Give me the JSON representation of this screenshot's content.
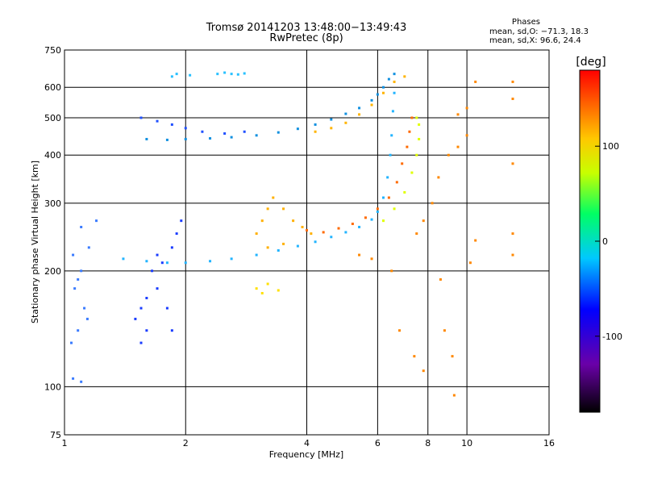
{
  "chart_data": {
    "type": "scatter",
    "title": "Tromsø 20141203 13:48:00−13:49:43",
    "subtitle": "RwPretec (8p)",
    "xlabel": "Frequency [MHz]",
    "ylabel": "Stationary phase Virtual Height [km]",
    "x_scale": "log",
    "y_scale": "log",
    "xlim": [
      1,
      16
    ],
    "ylim": [
      75,
      750
    ],
    "x_ticks": [
      1,
      2,
      4,
      6,
      8,
      10,
      16
    ],
    "y_ticks": [
      75,
      100,
      200,
      300,
      400,
      500,
      600,
      750
    ],
    "grid": true,
    "colorbar": {
      "label": "[deg]",
      "range": [
        -180,
        180
      ],
      "ticks": [
        100,
        0,
        -100
      ]
    },
    "phase_stats": {
      "title": "Phases",
      "o_line": "mean, sd,O: −71.3, 18.3",
      "x_line": "mean, sd,X:  96.6, 24.4"
    },
    "series": [
      {
        "name": "",
        "points": [
          [
            1.05,
            105
          ],
          [
            1.1,
            103
          ],
          [
            1.04,
            130
          ],
          [
            1.08,
            140
          ],
          [
            1.12,
            160
          ],
          [
            1.06,
            180
          ],
          [
            1.1,
            200
          ],
          [
            1.05,
            220
          ],
          [
            1.15,
            230
          ],
          [
            1.1,
            260
          ],
          [
            1.2,
            270
          ],
          [
            1.08,
            190
          ],
          [
            1.14,
            150
          ]
        ]
      },
      {
        "name": "",
        "points": [
          [
            1.5,
            150
          ],
          [
            1.55,
            160
          ],
          [
            1.6,
            170
          ],
          [
            1.7,
            180
          ],
          [
            1.65,
            200
          ],
          [
            1.75,
            210
          ],
          [
            1.8,
            160
          ],
          [
            1.85,
            140
          ],
          [
            1.6,
            140
          ],
          [
            1.55,
            130
          ],
          [
            1.7,
            220
          ],
          [
            1.85,
            230
          ],
          [
            1.9,
            250
          ],
          [
            1.95,
            270
          ]
        ]
      },
      {
        "name": "",
        "points": [
          [
            1.4,
            215
          ],
          [
            1.6,
            212
          ],
          [
            1.8,
            210
          ],
          [
            2.0,
            210
          ],
          [
            2.3,
            212
          ],
          [
            2.6,
            215
          ],
          [
            3.0,
            220
          ],
          [
            3.4,
            226
          ],
          [
            3.8,
            232
          ],
          [
            4.2,
            238
          ],
          [
            4.6,
            245
          ],
          [
            5.0,
            252
          ],
          [
            5.4,
            260
          ],
          [
            5.8,
            272
          ],
          [
            6.0,
            285
          ],
          [
            6.2,
            310
          ],
          [
            6.35,
            350
          ],
          [
            6.45,
            400
          ],
          [
            6.5,
            450
          ],
          [
            6.55,
            520
          ],
          [
            6.6,
            580
          ]
        ]
      },
      {
        "name": "",
        "points": [
          [
            1.6,
            440
          ],
          [
            1.8,
            438
          ],
          [
            2.0,
            440
          ],
          [
            2.3,
            442
          ],
          [
            2.6,
            445
          ],
          [
            3.0,
            450
          ],
          [
            3.4,
            458
          ],
          [
            3.8,
            468
          ],
          [
            4.2,
            480
          ],
          [
            4.6,
            495
          ],
          [
            5.0,
            512
          ],
          [
            5.4,
            530
          ],
          [
            5.8,
            555
          ],
          [
            6.0,
            575
          ],
          [
            6.2,
            600
          ],
          [
            6.4,
            630
          ],
          [
            6.6,
            650
          ]
        ]
      },
      {
        "name": "",
        "points": [
          [
            1.55,
            500
          ],
          [
            1.7,
            490
          ],
          [
            1.85,
            480
          ],
          [
            2.0,
            470
          ],
          [
            2.2,
            460
          ],
          [
            2.5,
            455
          ],
          [
            2.8,
            460
          ]
        ]
      },
      {
        "name": "",
        "points": [
          [
            1.85,
            640
          ],
          [
            1.9,
            650
          ],
          [
            2.05,
            645
          ],
          [
            2.4,
            650
          ],
          [
            2.5,
            655
          ],
          [
            2.6,
            650
          ],
          [
            2.7,
            648
          ],
          [
            2.8,
            652
          ]
        ]
      },
      {
        "name": "",
        "points": [
          [
            4.0,
            255
          ],
          [
            4.4,
            252
          ],
          [
            4.8,
            258
          ],
          [
            5.2,
            265
          ],
          [
            5.6,
            275
          ],
          [
            6.0,
            290
          ],
          [
            6.4,
            310
          ],
          [
            6.7,
            340
          ],
          [
            6.9,
            380
          ],
          [
            7.1,
            420
          ],
          [
            7.2,
            460
          ],
          [
            7.3,
            500
          ]
        ]
      },
      {
        "name": "",
        "points": [
          [
            4.2,
            460
          ],
          [
            4.6,
            470
          ],
          [
            5.0,
            485
          ],
          [
            5.4,
            510
          ],
          [
            5.8,
            540
          ],
          [
            6.2,
            580
          ],
          [
            6.6,
            620
          ],
          [
            7.0,
            640
          ]
        ]
      },
      {
        "name": "",
        "points": [
          [
            6.2,
            270
          ],
          [
            6.6,
            290
          ],
          [
            7.0,
            320
          ],
          [
            7.3,
            360
          ],
          [
            7.5,
            400
          ],
          [
            7.6,
            440
          ],
          [
            7.6,
            480
          ],
          [
            7.5,
            500
          ]
        ]
      },
      {
        "name": "",
        "points": [
          [
            3.0,
            250
          ],
          [
            3.1,
            270
          ],
          [
            3.2,
            290
          ],
          [
            3.3,
            310
          ],
          [
            3.5,
            290
          ],
          [
            3.7,
            270
          ],
          [
            3.9,
            260
          ],
          [
            4.1,
            250
          ],
          [
            3.2,
            230
          ],
          [
            3.5,
            235
          ]
        ]
      },
      {
        "name": "",
        "points": [
          [
            3.0,
            180
          ],
          [
            3.1,
            175
          ],
          [
            3.2,
            185
          ],
          [
            3.4,
            178
          ]
        ]
      },
      {
        "name": "",
        "points": [
          [
            7.5,
            250
          ],
          [
            7.8,
            270
          ],
          [
            8.2,
            300
          ],
          [
            8.5,
            350
          ],
          [
            9.0,
            400
          ],
          [
            9.5,
            420
          ],
          [
            10.0,
            450
          ],
          [
            10.5,
            620
          ],
          [
            13.0,
            620
          ],
          [
            13.0,
            560
          ],
          [
            13.0,
            380
          ],
          [
            13.0,
            250
          ],
          [
            13.0,
            220
          ],
          [
            9.3,
            95
          ],
          [
            9.2,
            120
          ],
          [
            8.8,
            140
          ],
          [
            8.6,
            190
          ],
          [
            7.8,
            110
          ],
          [
            7.4,
            120
          ],
          [
            6.8,
            140
          ],
          [
            6.5,
            200
          ],
          [
            5.8,
            215
          ],
          [
            5.4,
            220
          ],
          [
            10.0,
            530
          ],
          [
            9.5,
            510
          ],
          [
            10.5,
            240
          ],
          [
            10.2,
            210
          ]
        ]
      }
    ]
  }
}
